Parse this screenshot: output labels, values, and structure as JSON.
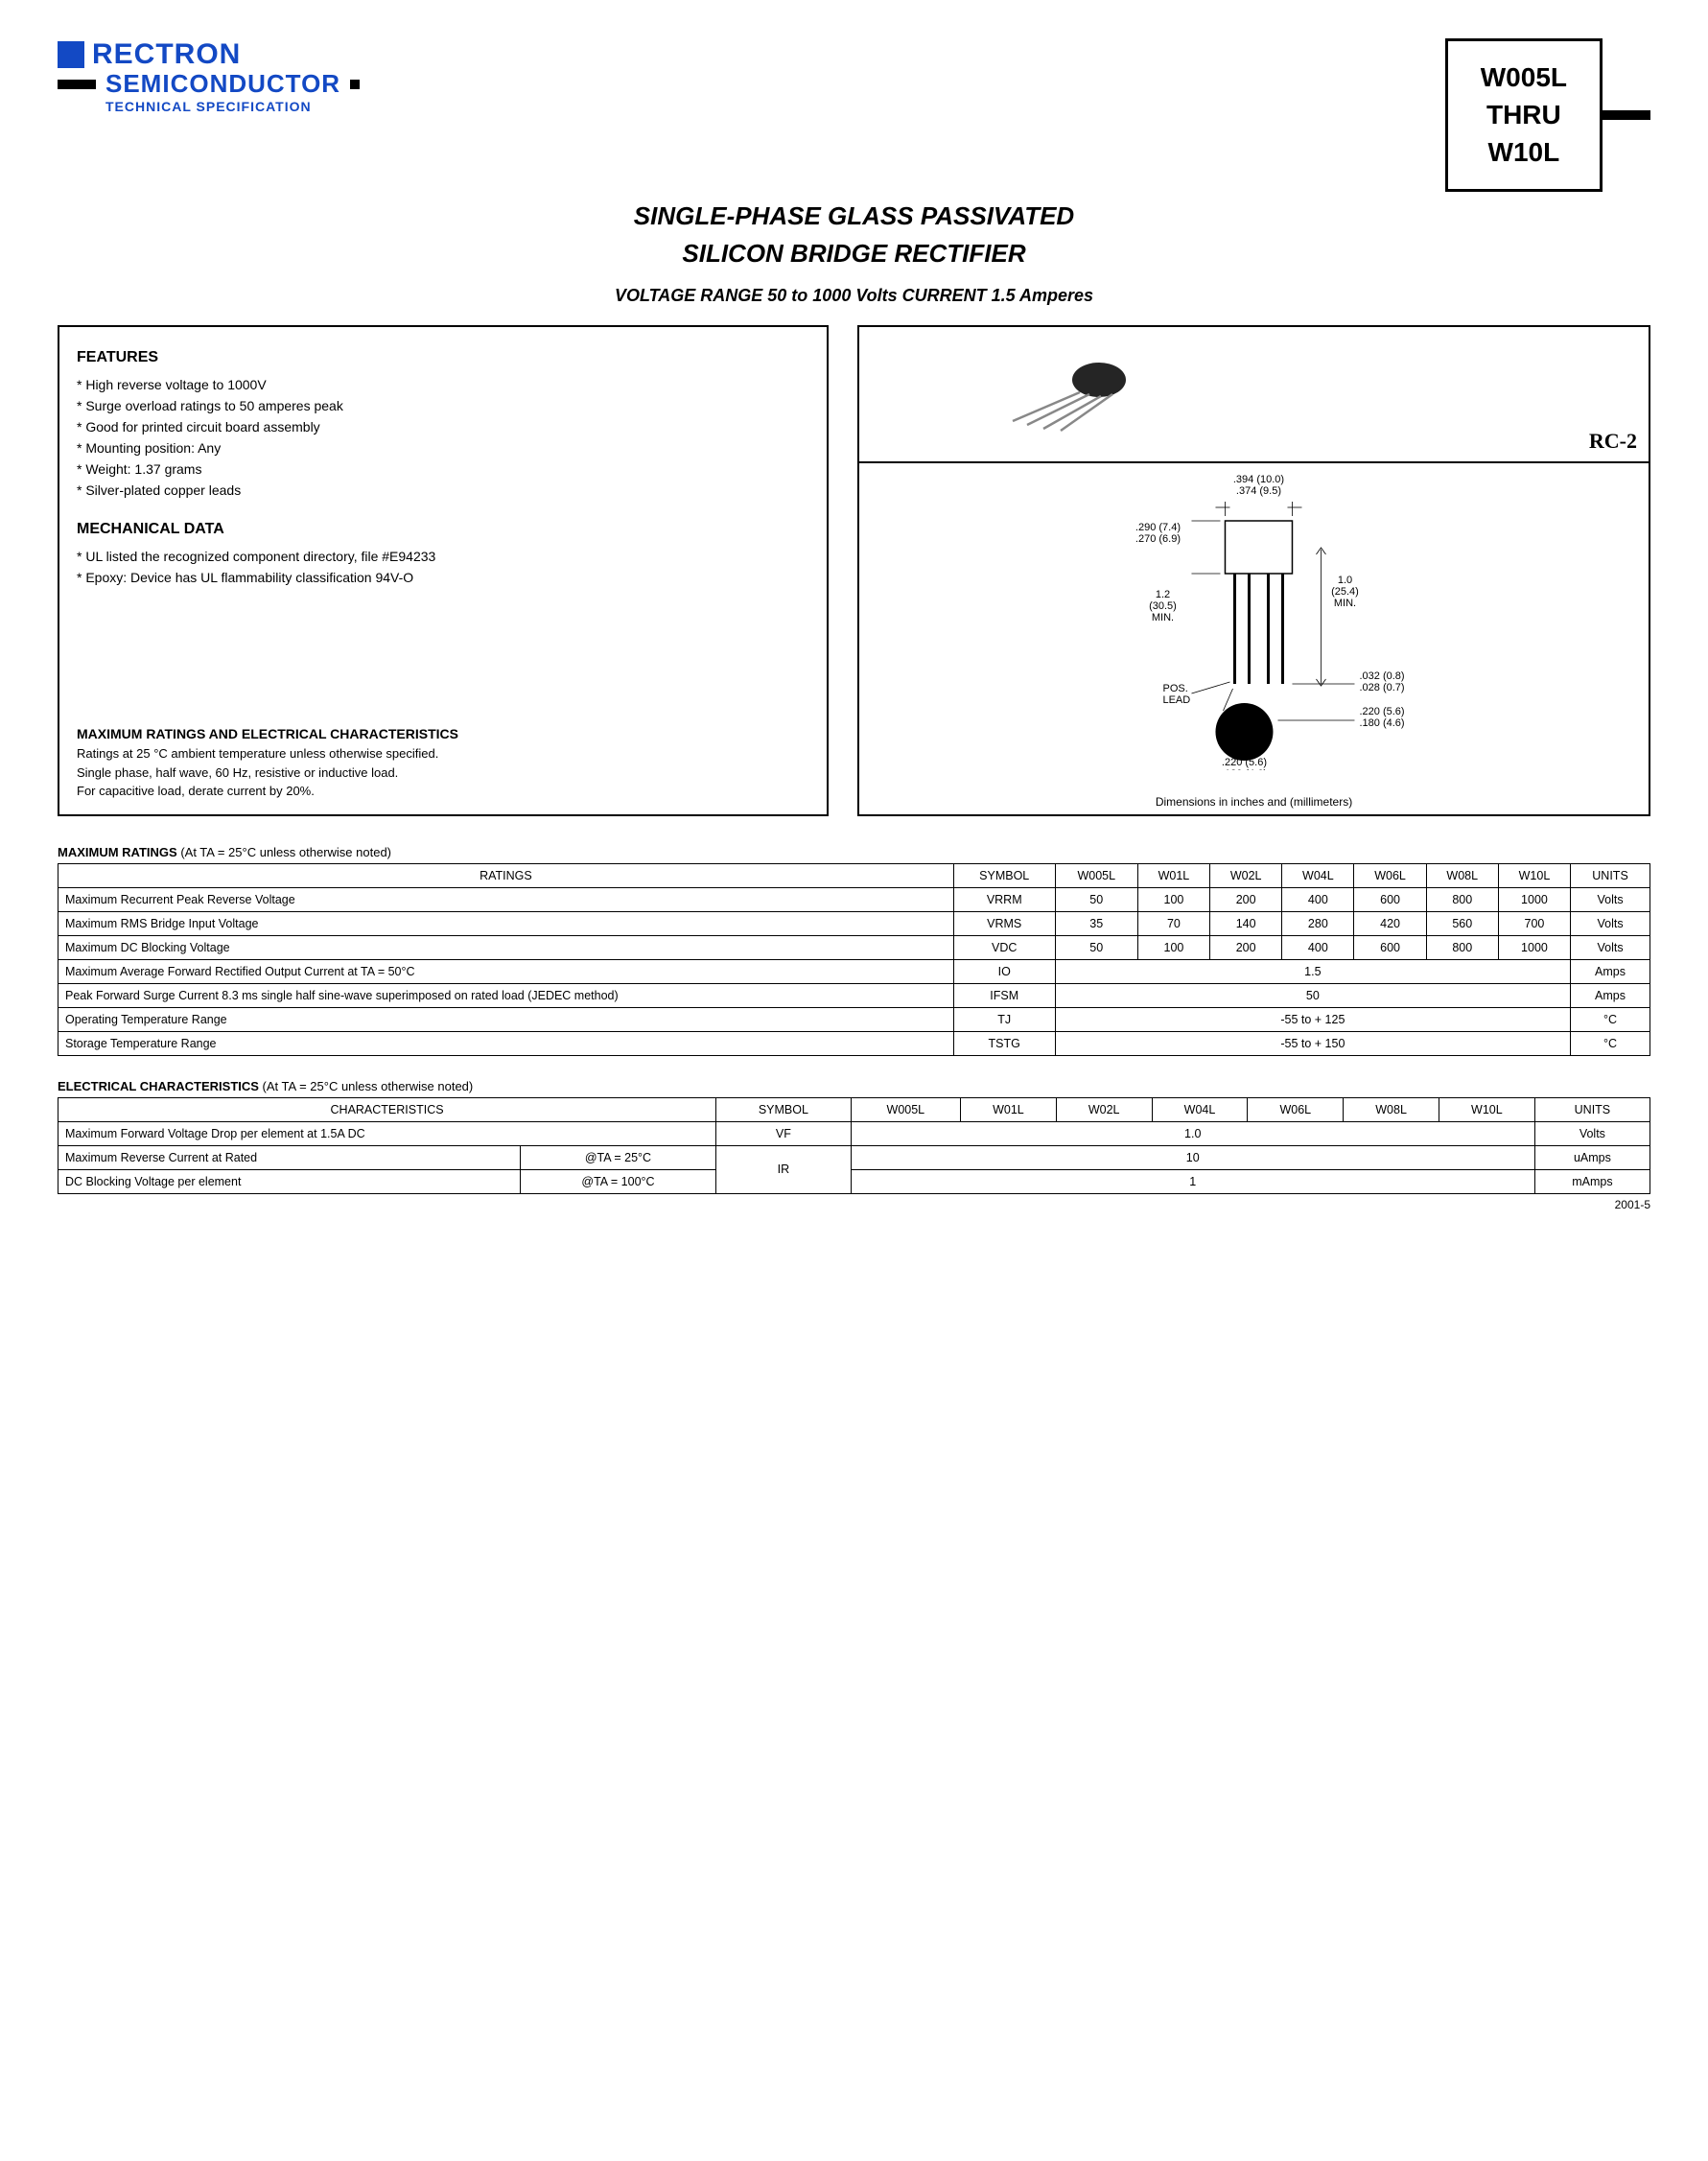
{
  "header": {
    "company": "RECTRON",
    "sub": "SEMICONDUCTOR",
    "tech_spec": "TECHNICAL SPECIFICATION",
    "part_top": "W005L",
    "part_mid": "THRU",
    "part_bot": "W10L"
  },
  "titles": {
    "main1": "SINGLE-PHASE GLASS PASSIVATED",
    "main2": "SILICON BRIDGE RECTIFIER",
    "range": "VOLTAGE RANGE  50 to 1000 Volts    CURRENT 1.5 Amperes"
  },
  "features": {
    "heading": "FEATURES",
    "items": [
      "* High reverse voltage to 1000V",
      "* Surge overload ratings to 50 amperes peak",
      "* Good for printed circuit board assembly",
      "* Mounting position: Any",
      "* Weight: 1.37 grams",
      "* Silver-plated copper leads"
    ]
  },
  "mechanical": {
    "heading": "MECHANICAL DATA",
    "items": [
      "* UL listed the recognized component directory, file #E94233",
      "* Epoxy: Device has UL flammability classification 94V-O"
    ]
  },
  "ratings_intro": {
    "heading": "MAXIMUM RATINGS AND ELECTRICAL CHARACTERISTICS",
    "l1": "Ratings at 25 °C ambient temperature unless otherwise specified.",
    "l2": "Single phase, half wave, 60 Hz, resistive or inductive load.",
    "l3": "For capacitive load, derate current by 20%."
  },
  "package": {
    "label": "RC-2",
    "dim_caption": "Dimensions in inches and (millimeters)",
    "dims": {
      "d1": ".394 (10.0)",
      "d2": ".374 (9.5)",
      "d3": ".290 (7.4)",
      "d4": ".270 (6.9)",
      "d5a": "1.2",
      "d5b": "(30.5)",
      "d5c": "MIN.",
      "d6a": "1.0",
      "d6b": "(25.4)",
      "d6c": "MIN.",
      "d7": ".032 (0.8)",
      "d8": ".028 (0.7)",
      "d9": ".220 (5.6)",
      "d10": ".180 (4.6)",
      "d11": ".220 (5.6)",
      "d12": ".180 (4.6)",
      "pos": "POS.",
      "lead": "LEAD"
    }
  },
  "max_table": {
    "caption_b": "MAXIMUM RATINGS",
    "caption_rest": " (At TA = 25°C unless otherwise noted)",
    "headers": [
      "RATINGS",
      "SYMBOL",
      "W005L",
      "W01L",
      "W02L",
      "W04L",
      "W06L",
      "W08L",
      "W10L",
      "UNITS"
    ],
    "rows": [
      {
        "r": "Maximum Recurrent Peak Reverse Voltage",
        "s": "VRRM",
        "v": [
          "50",
          "100",
          "200",
          "400",
          "600",
          "800",
          "1000"
        ],
        "u": "Volts"
      },
      {
        "r": "Maximum RMS Bridge Input Voltage",
        "s": "VRMS",
        "v": [
          "35",
          "70",
          "140",
          "280",
          "420",
          "560",
          "700"
        ],
        "u": "Volts"
      },
      {
        "r": "Maximum DC Blocking Voltage",
        "s": "VDC",
        "v": [
          "50",
          "100",
          "200",
          "400",
          "600",
          "800",
          "1000"
        ],
        "u": "Volts"
      },
      {
        "r": "Maximum Average Forward Rectified Output Current at TA = 50°C",
        "s": "IO",
        "span": "1.5",
        "u": "Amps"
      },
      {
        "r": "Peak Forward Surge Current 8.3 ms single half sine-wave superimposed on rated load (JEDEC method)",
        "s": "IFSM",
        "span": "50",
        "u": "Amps"
      },
      {
        "r": "Operating Temperature Range",
        "s": "TJ",
        "span": "-55 to + 125",
        "u": "°C"
      },
      {
        "r": "Storage Temperature Range",
        "s": "TSTG",
        "span": "-55 to + 150",
        "u": "°C"
      }
    ]
  },
  "elec_table": {
    "caption_b": "ELECTRICAL CHARACTERISTICS",
    "caption_rest": " (At TA = 25°C unless otherwise noted)",
    "headers": [
      "CHARACTERISTICS",
      "SYMBOL",
      "W005L",
      "W01L",
      "W02L",
      "W04L",
      "W06L",
      "W08L",
      "W10L",
      "UNITS"
    ],
    "r1": {
      "label": "Maximum Forward Voltage Drop per element at 1.5A DC",
      "s": "VF",
      "val": "1.0",
      "u": "Volts"
    },
    "r2": {
      "label": "Maximum Reverse Current at Rated",
      "cond": "@TA = 25°C",
      "s": "IR",
      "val": "10",
      "u": "uAmps"
    },
    "r3": {
      "label": "DC Blocking Voltage per element",
      "cond": "@TA = 100°C",
      "val": "1",
      "u": "mAmps"
    }
  },
  "footer": {
    "code": "2001-5"
  }
}
